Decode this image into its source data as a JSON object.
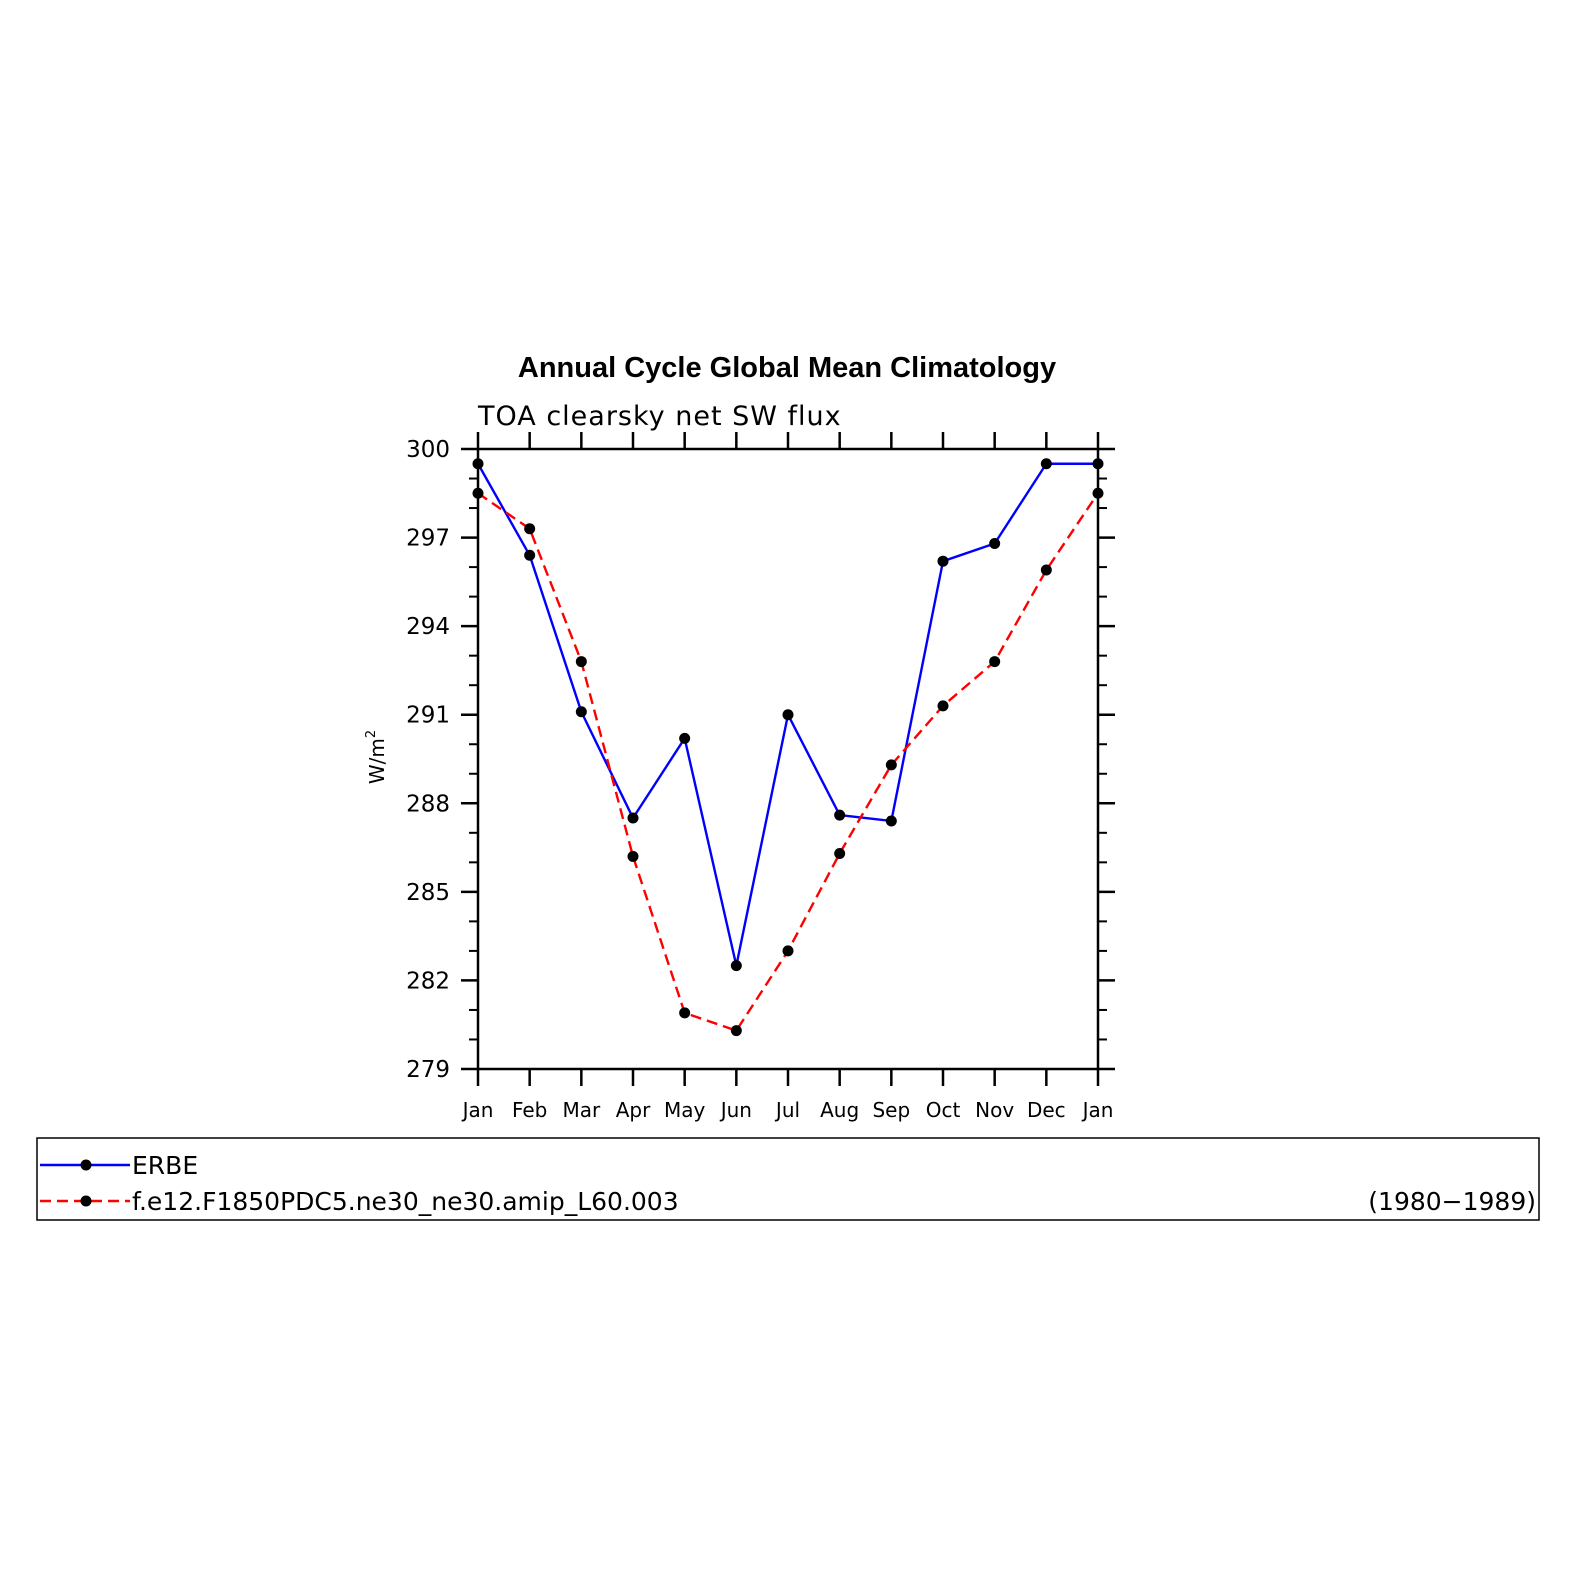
{
  "chart_data": {
    "type": "line",
    "title": "Annual Cycle Global Mean Climatology",
    "subtitle": "TOA clearsky net SW flux",
    "ylabel": "W/m",
    "ylabel_superscript": "2",
    "xlabel": "",
    "ylim": [
      279,
      300
    ],
    "yticks": [
      "300",
      "297",
      "294",
      "291",
      "288",
      "285",
      "282",
      "279"
    ],
    "ytick_values": [
      300,
      297,
      294,
      291,
      288,
      285,
      282,
      279
    ],
    "categories": [
      "Jan",
      "Feb",
      "Mar",
      "Apr",
      "May",
      "Jun",
      "Jul",
      "Aug",
      "Sep",
      "Oct",
      "Nov",
      "Dec",
      "Jan"
    ],
    "series": [
      {
        "name": "ERBE",
        "color": "#0000ff",
        "dash": "solid",
        "values": [
          299.5,
          296.4,
          291.1,
          287.5,
          290.2,
          282.5,
          291.0,
          287.6,
          287.4,
          296.2,
          296.8,
          299.5,
          299.5
        ]
      },
      {
        "name": "f.e12.F1850PDC5.ne30_ne30.amip_L60.003",
        "color": "#ff0000",
        "dash": "dashed",
        "values": [
          298.5,
          297.3,
          292.8,
          286.2,
          280.9,
          280.3,
          283.0,
          286.3,
          289.3,
          291.3,
          292.8,
          295.9,
          298.5
        ]
      }
    ],
    "grid": false,
    "legend_position": "bottom"
  },
  "legend": {
    "period": "(1980−1989)"
  }
}
